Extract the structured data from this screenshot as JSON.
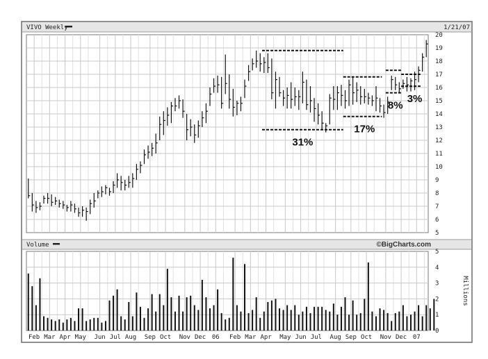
{
  "chart_data": [
    {
      "type": "ohlc",
      "title": "VIVO Weekly",
      "date_label": "1/21/07",
      "ylim": [
        5,
        20
      ],
      "y_ticks": [
        5,
        6,
        7,
        8,
        9,
        10,
        11,
        12,
        13,
        14,
        15,
        16,
        17,
        18,
        19,
        20
      ],
      "x_ticks": [
        {
          "label": "Feb",
          "week": 2
        },
        {
          "label": "Mar",
          "week": 6
        },
        {
          "label": "Apr",
          "week": 10
        },
        {
          "label": "May",
          "week": 14
        },
        {
          "label": "Jun",
          "week": 19
        },
        {
          "label": "Jul",
          "week": 23
        },
        {
          "label": "Aug",
          "week": 27
        },
        {
          "label": "Sep",
          "week": 32
        },
        {
          "label": "Oct",
          "week": 36
        },
        {
          "label": "Nov",
          "week": 41
        },
        {
          "label": "Dec",
          "week": 45
        },
        {
          "label": "06",
          "week": 49
        },
        {
          "label": "Feb",
          "week": 54
        },
        {
          "label": "Mar",
          "week": 58
        },
        {
          "label": "Apr",
          "week": 62
        },
        {
          "label": "May",
          "week": 67
        },
        {
          "label": "Jun",
          "week": 71
        },
        {
          "label": "Jul",
          "week": 75
        },
        {
          "label": "Aug",
          "week": 80
        },
        {
          "label": "Sep",
          "week": 84
        },
        {
          "label": "Oct",
          "week": 88
        },
        {
          "label": "Nov",
          "week": 93
        },
        {
          "label": "Dec",
          "week": 97
        },
        {
          "label": "07",
          "week": 101
        }
      ],
      "weeks": 104,
      "high": [
        9.1,
        8.0,
        7.4,
        7.3,
        7.8,
        8.0,
        7.9,
        7.7,
        7.5,
        7.4,
        7.1,
        7.4,
        7.2,
        6.9,
        7.0,
        6.9,
        7.5,
        8.0,
        8.2,
        8.5,
        8.6,
        8.4,
        8.9,
        9.5,
        9.3,
        9.0,
        9.3,
        9.5,
        10.2,
        10.4,
        11.3,
        11.6,
        11.8,
        12.5,
        13.8,
        14.2,
        14.5,
        14.9,
        15.2,
        15.4,
        15.1,
        14.0,
        13.6,
        13.2,
        13.5,
        14.2,
        14.8,
        16.0,
        16.7,
        16.9,
        16.8,
        18.5,
        17.0,
        15.9,
        15.0,
        15.3,
        16.6,
        17.7,
        18.2,
        18.8,
        18.6,
        18.3,
        18.6,
        18.2,
        17.2,
        16.8,
        15.8,
        16.0,
        16.4,
        16.0,
        15.8,
        17.2,
        16.6,
        16.1,
        15.2,
        14.8,
        14.2,
        13.3,
        15.5,
        16.1,
        16.1,
        16.2,
        15.8,
        16.6,
        16.8,
        16.4,
        16.1,
        15.9,
        15.6,
        15.4,
        16.1,
        15.2,
        14.7,
        15.3,
        16.9,
        16.8,
        16.4,
        16.6,
        16.8,
        16.7,
        17.2,
        17.6,
        18.6,
        19.6
      ],
      "low": [
        7.6,
        6.6,
        6.5,
        6.7,
        7.2,
        7.2,
        7.0,
        7.1,
        6.9,
        6.8,
        6.6,
        6.6,
        6.5,
        6.2,
        6.2,
        5.9,
        6.4,
        6.9,
        7.6,
        7.7,
        7.9,
        7.8,
        8.0,
        8.4,
        8.2,
        8.2,
        8.4,
        8.4,
        9.0,
        9.5,
        10.2,
        10.6,
        10.8,
        11.0,
        12.0,
        12.4,
        13.1,
        13.3,
        14.2,
        14.4,
        13.7,
        12.0,
        12.3,
        11.8,
        12.2,
        13.0,
        13.3,
        14.6,
        15.6,
        15.6,
        14.4,
        15.5,
        14.4,
        13.8,
        13.9,
        14.2,
        15.2,
        16.5,
        17.3,
        17.5,
        17.2,
        17.1,
        17.1,
        15.1,
        14.4,
        15.3,
        14.6,
        14.4,
        14.4,
        14.6,
        14.3,
        14.8,
        14.3,
        14.1,
        13.4,
        13.2,
        12.8,
        12.6,
        13.2,
        14.3,
        14.3,
        14.6,
        14.4,
        14.6,
        14.7,
        14.9,
        14.7,
        14.8,
        14.7,
        14.6,
        14.2,
        14.1,
        13.7,
        14.0,
        15.8,
        15.8,
        15.6,
        15.9,
        15.7,
        15.7,
        15.8,
        16.4,
        17.2,
        18.3
      ],
      "close": [
        7.8,
        7.1,
        6.9,
        7.0,
        7.6,
        7.6,
        7.3,
        7.4,
        7.2,
        7.1,
        6.9,
        7.1,
        6.8,
        6.5,
        6.7,
        6.6,
        7.2,
        7.4,
        8.0,
        8.1,
        8.4,
        8.1,
        8.6,
        9.0,
        8.8,
        8.6,
        8.8,
        9.1,
        9.8,
        10.1,
        10.9,
        11.1,
        11.4,
        11.8,
        13.2,
        13.5,
        13.9,
        14.6,
        14.6,
        15.0,
        14.2,
        12.8,
        13.0,
        12.4,
        13.1,
        13.7,
        14.2,
        15.5,
        16.1,
        16.2,
        14.8,
        16.3,
        15.1,
        14.5,
        14.8,
        14.8,
        16.1,
        17.2,
        17.8,
        18.0,
        17.8,
        17.9,
        17.5,
        15.6,
        16.6,
        15.6,
        15.2,
        15.4,
        15.1,
        15.3,
        15.3,
        16.4,
        14.7,
        15.0,
        14.4,
        13.9,
        13.3,
        13.1,
        15.2,
        15.1,
        15.6,
        15.4,
        15.0,
        16.2,
        15.6,
        15.8,
        15.3,
        15.3,
        15.2,
        15.0,
        15.2,
        14.6,
        14.1,
        14.9,
        16.6,
        16.2,
        15.9,
        16.3,
        16.2,
        16.5,
        16.6,
        17.3,
        18.3,
        19.3
      ]
    },
    {
      "type": "bar",
      "title": "Volume",
      "units_label": "Millions",
      "watermark": "©BigCharts.com",
      "ylim": [
        0,
        5
      ],
      "y_ticks": [
        0,
        1,
        2,
        3,
        4,
        5
      ],
      "values": [
        3.6,
        2.8,
        1.6,
        3.3,
        0.9,
        0.8,
        0.7,
        0.6,
        0.7,
        0.5,
        0.7,
        0.8,
        0.6,
        1.4,
        1.4,
        0.6,
        0.7,
        0.8,
        0.8,
        0.5,
        0.6,
        1.9,
        2.2,
        2.6,
        0.9,
        0.7,
        1.8,
        0.9,
        2.4,
        1.5,
        0.8,
        1.4,
        2.3,
        1.2,
        2.3,
        1.6,
        3.9,
        2.1,
        1.2,
        2.2,
        1.2,
        2.1,
        2.2,
        1.6,
        1.3,
        3.2,
        2.1,
        1.4,
        1.6,
        2.6,
        1.1,
        0.7,
        0.8,
        4.6,
        1.6,
        1.2,
        4.2,
        1.1,
        1.3,
        2.1,
        0.8,
        1.2,
        1.8,
        1.9,
        2.0,
        1.4,
        1.3,
        1.6,
        1.3,
        1.6,
        1.0,
        1.2,
        1.5,
        1.1,
        1.5,
        1.5,
        1.5,
        1.3,
        1.2,
        1.7,
        1.0,
        1.5,
        2.1,
        1.0,
        1.9,
        1.0,
        1.1,
        2.0,
        4.3,
        1.2,
        0.9,
        1.4,
        1.3,
        1.1,
        0.6,
        1.1,
        1.2,
        1.6,
        0.9,
        1.0,
        1.2,
        1.6,
        0.9,
        1.6,
        1.4,
        2.0
      ]
    }
  ],
  "annotations": [
    {
      "text": "31%",
      "lines": [
        {
          "y": 18.8,
          "from": 61,
          "to": 82
        },
        {
          "y": 12.8,
          "from": 61,
          "to": 82
        }
      ],
      "label_week": 71,
      "label_y": 11.6
    },
    {
      "text": "17%",
      "lines": [
        {
          "y": 16.8,
          "from": 82,
          "to": 92
        },
        {
          "y": 13.8,
          "from": 82,
          "to": 92
        }
      ],
      "label_week": 87,
      "label_y": 12.6
    },
    {
      "text": "8%",
      "lines": [
        {
          "y": 17.3,
          "from": 93,
          "to": 97
        },
        {
          "y": 15.6,
          "from": 93,
          "to": 97
        }
      ],
      "label_week": 95,
      "label_y": 14.4
    },
    {
      "text": "3%",
      "lines": [
        {
          "y": 17.0,
          "from": 97,
          "to": 102
        },
        {
          "y": 16.1,
          "from": 97,
          "to": 102
        }
      ],
      "label_week": 100,
      "label_y": 14.9
    }
  ]
}
